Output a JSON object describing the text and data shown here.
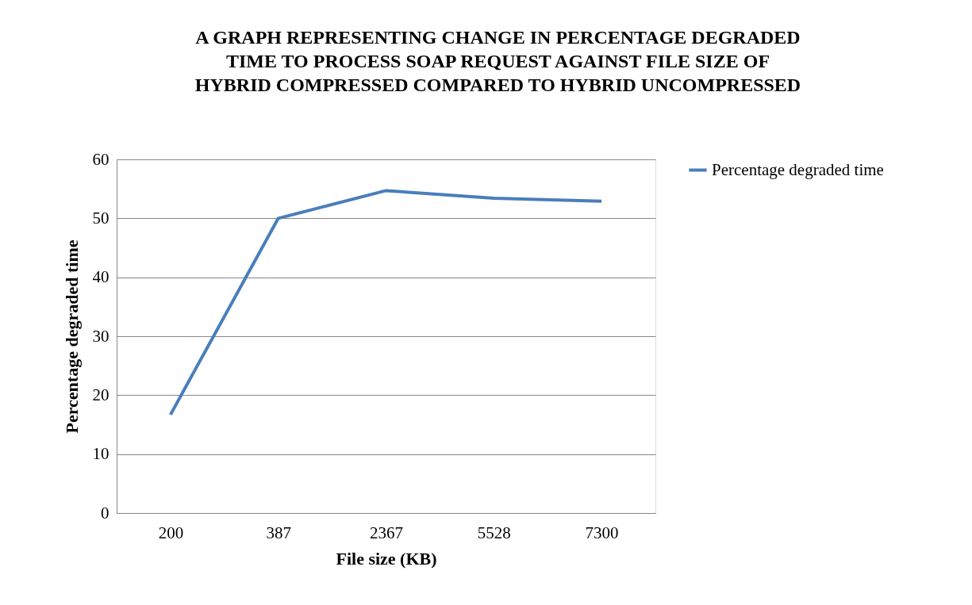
{
  "chart_data": {
    "type": "line",
    "title": "A GRAPH REPRESENTING CHANGE IN PERCENTAGE DEGRADED TIME TO PROCESS SOAP REQUEST AGAINST FILE SIZE OF HYBRID COMPRESSED COMPARED TO HYBRID UNCOMPRESSED",
    "xlabel": "File size (KB)",
    "ylabel": "Percentage degraded time",
    "categories": [
      "200",
      "387",
      "2367",
      "5528",
      "7300"
    ],
    "series": [
      {
        "name": "Percentage degraded time",
        "color": "#4a7ebb",
        "values": [
          16.7,
          50,
          54.7,
          53.4,
          52.9
        ]
      }
    ],
    "ylim": [
      0,
      60
    ],
    "yticks": [
      0,
      10,
      20,
      30,
      40,
      50,
      60
    ],
    "grid": "y",
    "legend": "right",
    "marker": "none",
    "line_style": "solid"
  }
}
